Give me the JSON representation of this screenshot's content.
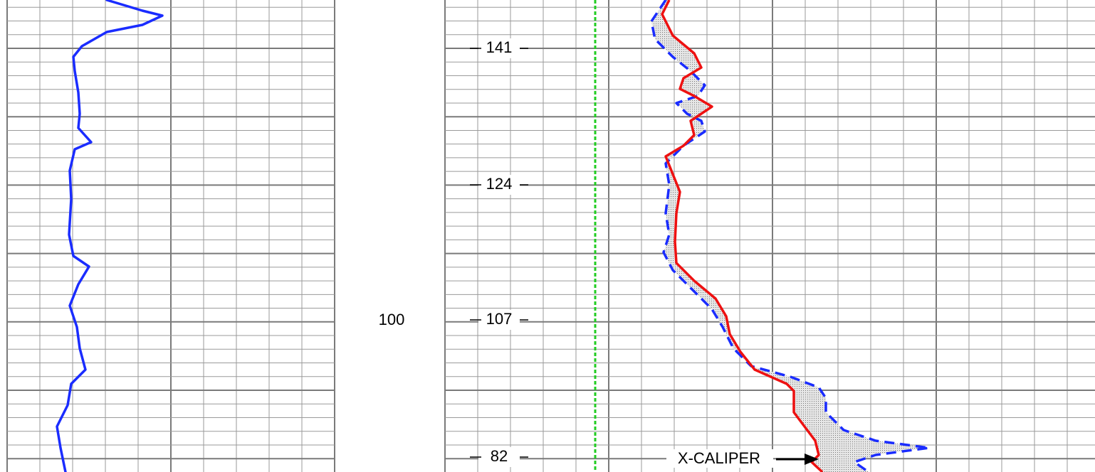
{
  "center_label": 100,
  "depth_labels": [
    141,
    124,
    107,
    82
  ],
  "curve_label": "X-CALIPER"
}
